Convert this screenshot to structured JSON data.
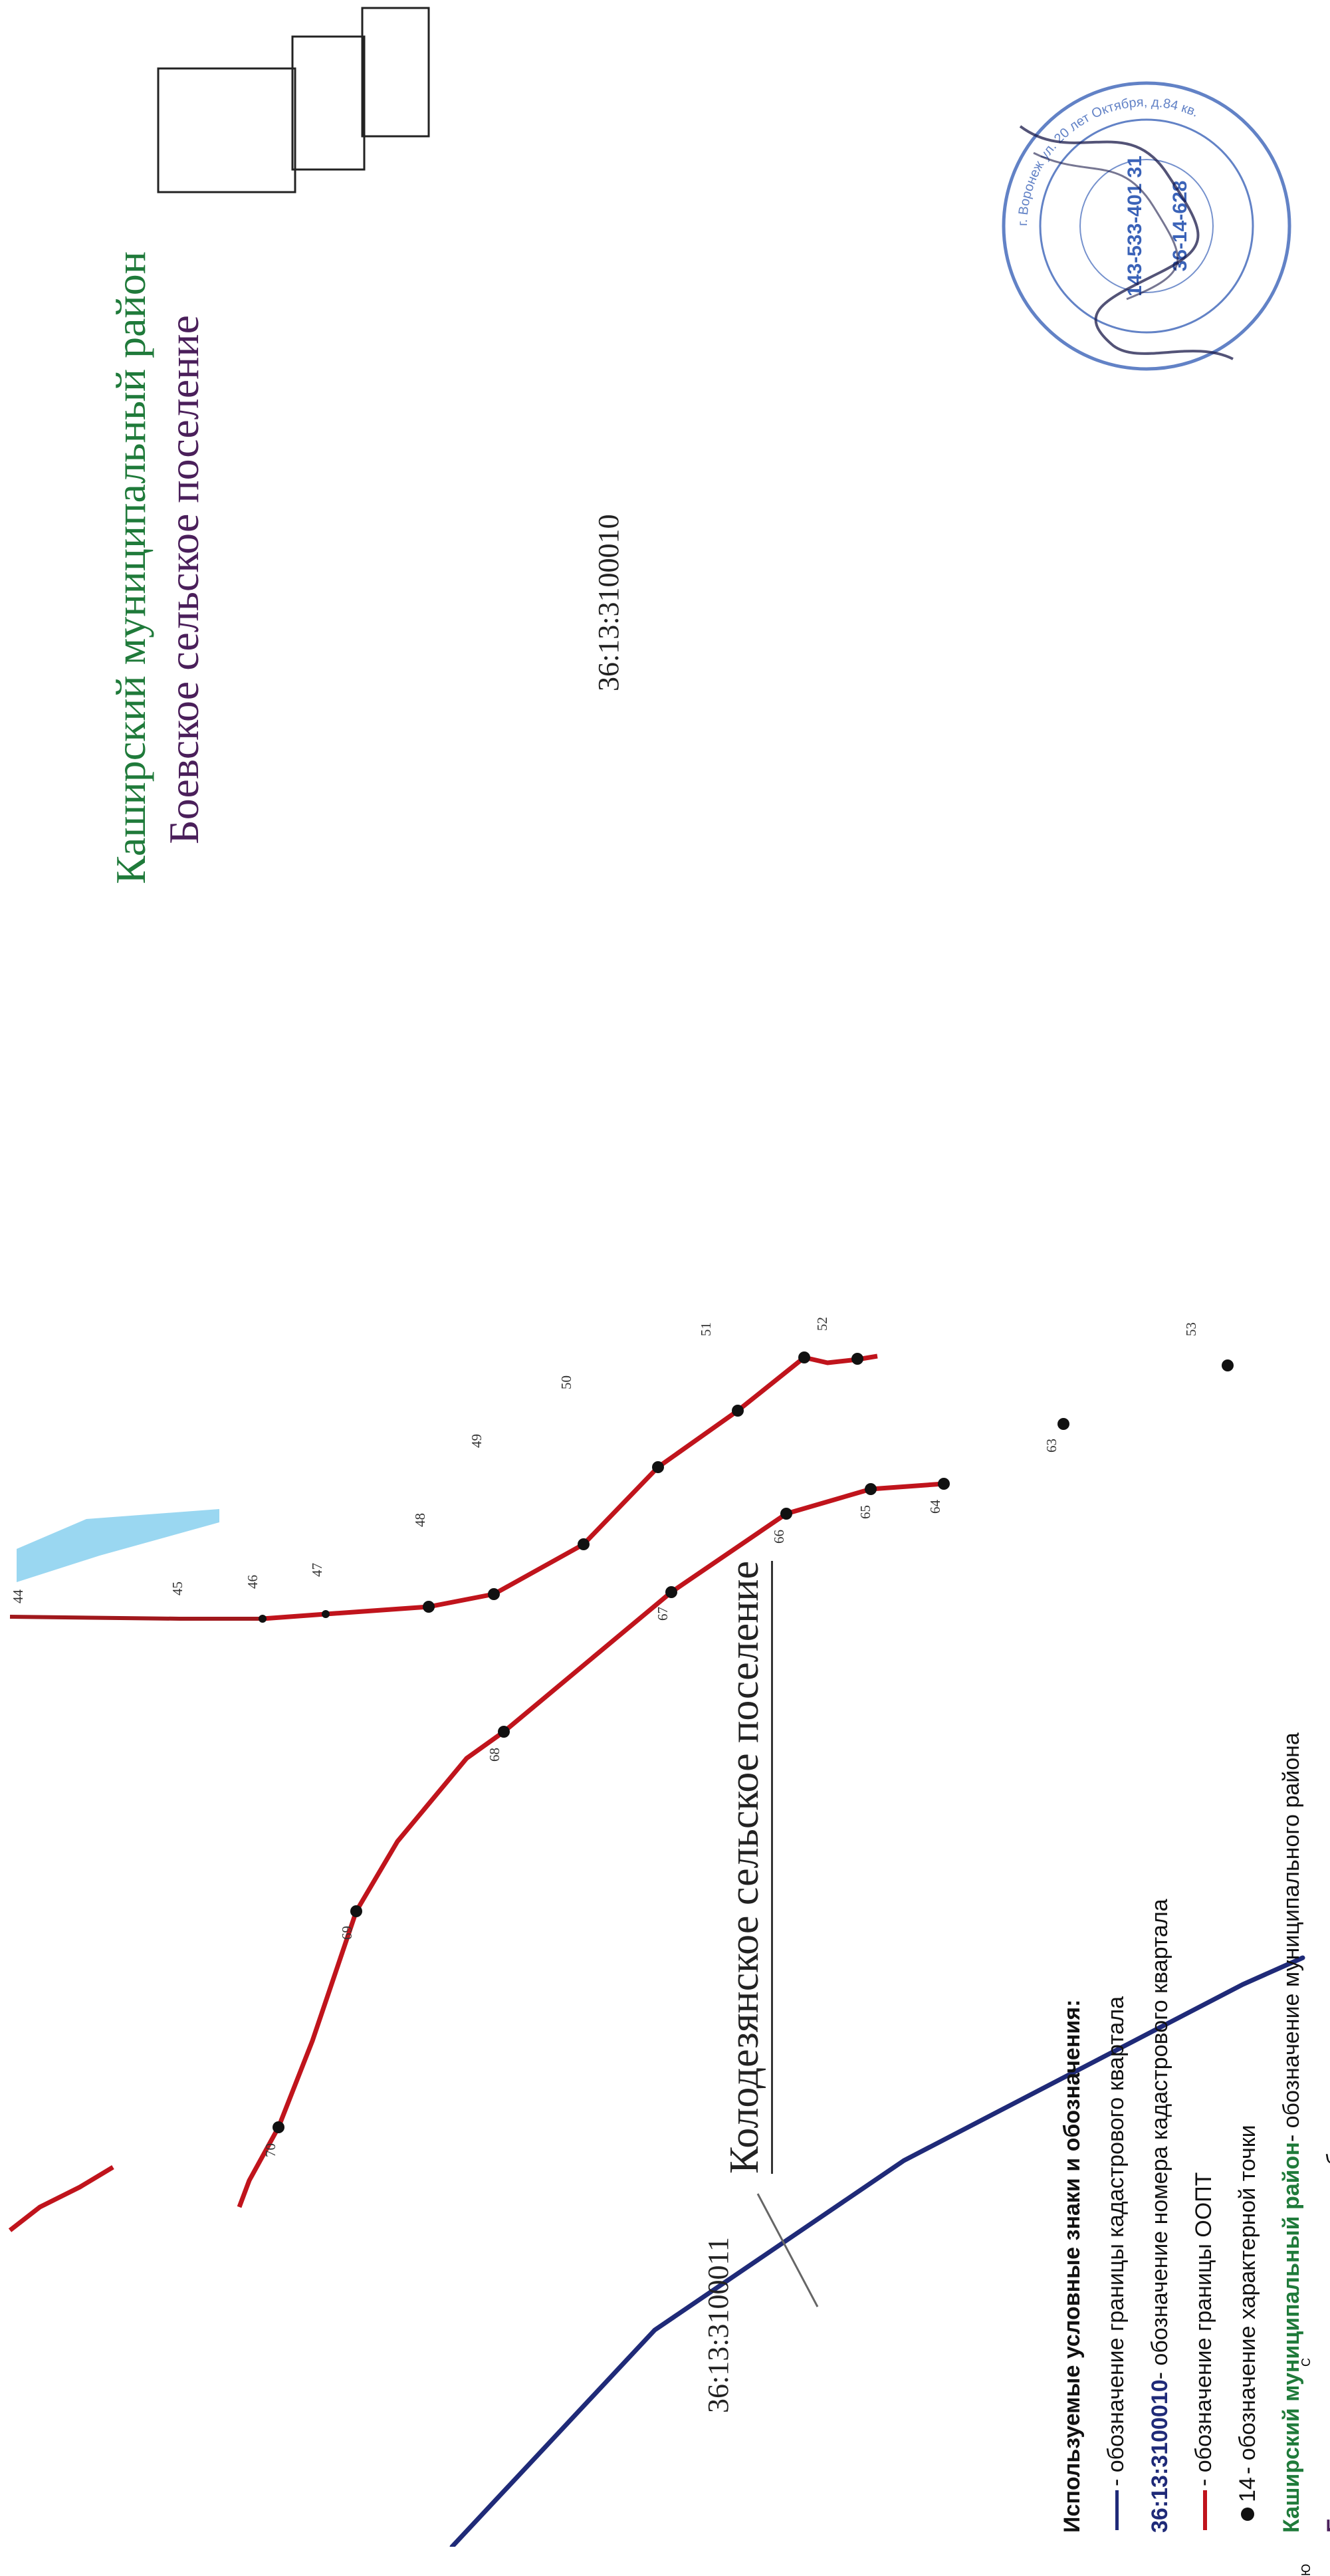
{
  "colors": {
    "boundary_red": "#c0141c",
    "district_boundary_blue": "#1f2a78",
    "district_text_green": "#1f7a3a",
    "settlement_text_purple": "#4a1f5a",
    "water_blue": "#8fd3ef",
    "stamp_blue": "#3b63b8"
  },
  "labels": {
    "district": "Каширский муниципальный район",
    "settlement": "Боевское сельское поселение",
    "quarter_main": "36:13:3100010",
    "quarter_other": "36:13:3100011",
    "neighbor_settlement": "Колодезянское сельское поселение"
  },
  "north_arrow": {
    "icon": "compass-rose-icon",
    "letters": {
      "north": "С",
      "south": "Ю"
    }
  },
  "points": {
    "north_line": [
      "44",
      "45",
      "46",
      "47",
      "48",
      "49",
      "50",
      "51",
      "52",
      "53"
    ],
    "south_line": [
      "70",
      "69",
      "68",
      "67",
      "66",
      "65",
      "64",
      "63"
    ]
  },
  "legend": {
    "heading": "Используемые условные знаки и обозначения:",
    "item_blue": "- обозначение границы кадастрового квартала",
    "item_number_code": "36:13:3100010",
    "item_number": " - обозначение номера кадастрового квартала",
    "item_red": "- обозначение границы ООПТ",
    "item_dot_num": "14",
    "item_dot": "- обозначение характерной точки",
    "item_district_name": "Каширский  муниципальный район",
    "item_district": " - обозначение муниципального района",
    "item_settlement_name": "Боевское сельское поселение",
    "item_settlement": "   - обозначение сельского поселения"
  },
  "stamp": {
    "icon": "round-seal-stamp-icon",
    "signature": "handwritten-signature-icon",
    "text_ring": "г. Воронеж ул. 20 лет Октября, д.84 кв.",
    "text_center": "143-533-401 31",
    "text_number": "36-14-628"
  }
}
